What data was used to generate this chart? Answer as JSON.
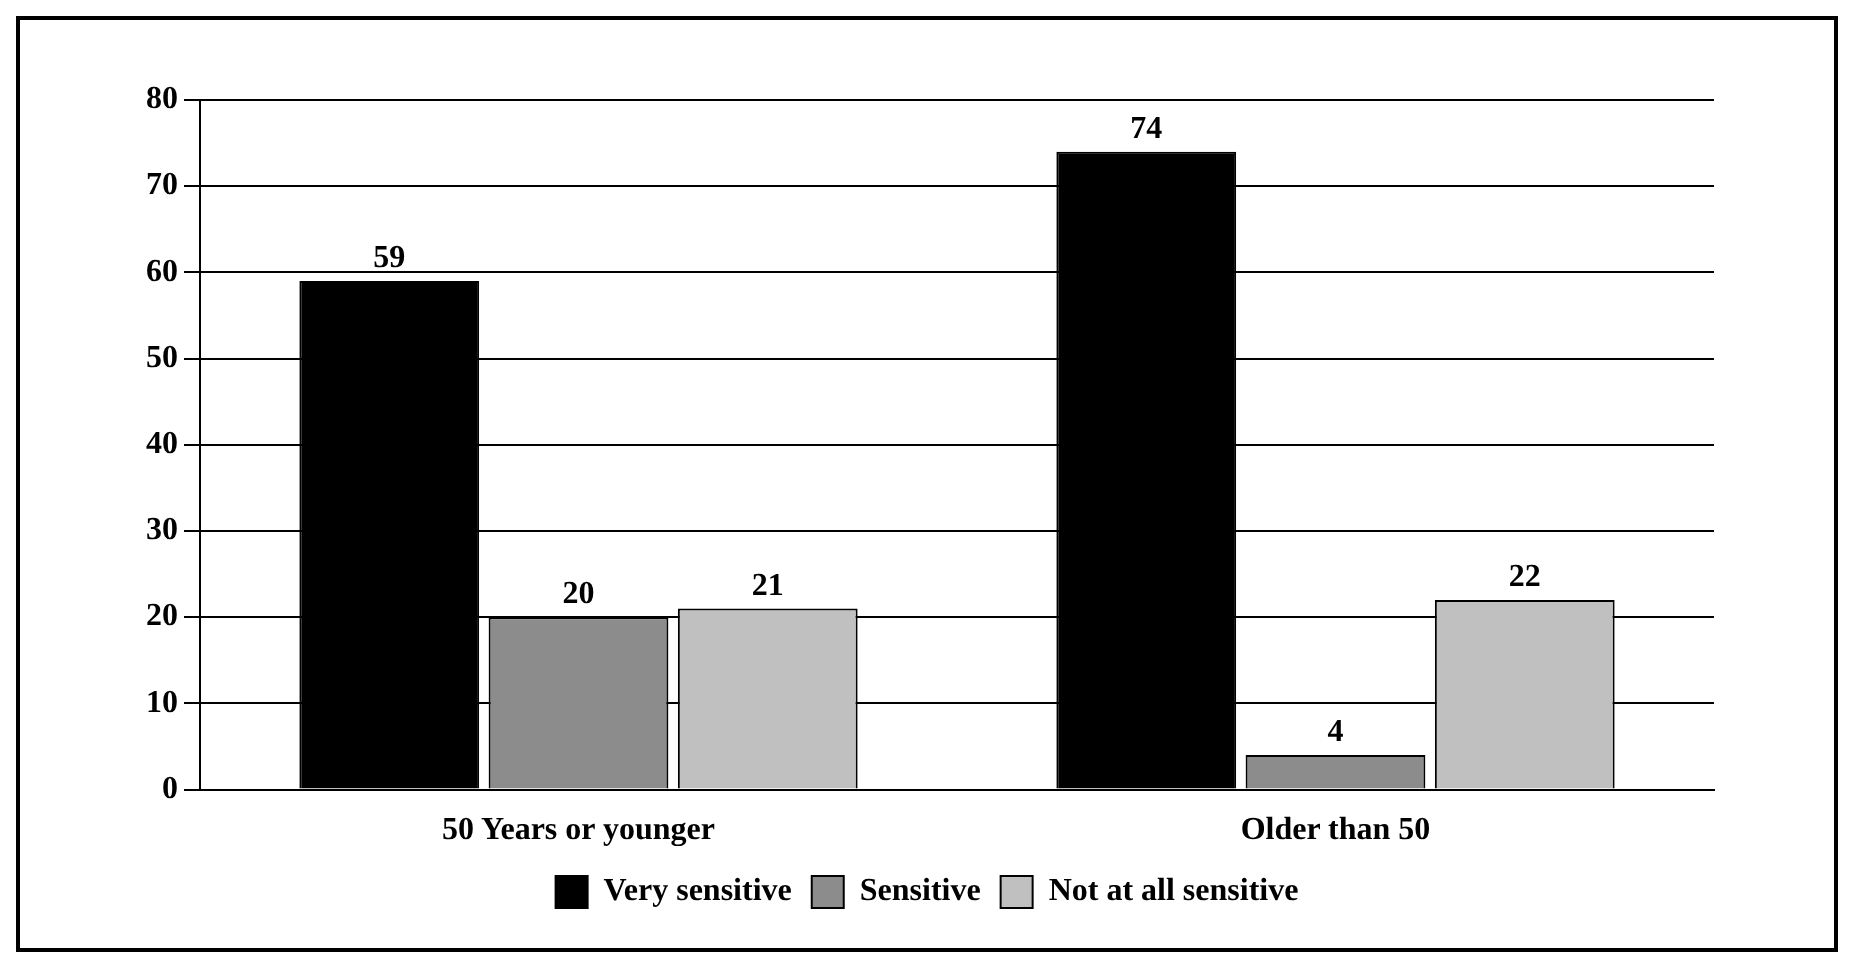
{
  "chart_data": {
    "type": "bar",
    "categories": [
      "50 Years or younger",
      "Older than 50"
    ],
    "series": [
      {
        "name": "Very sensitive",
        "color": "#000000",
        "values": [
          59,
          74
        ]
      },
      {
        "name": "Sensitive",
        "color": "#8c8c8c",
        "values": [
          20,
          4
        ]
      },
      {
        "name": "Not at all sensitive",
        "color": "#c0c0c0",
        "values": [
          21,
          22
        ]
      }
    ],
    "ylim": [
      0,
      80
    ],
    "yticks": [
      0,
      10,
      20,
      30,
      40,
      50,
      60,
      70,
      80
    ],
    "grid": "y",
    "legend": "bottom",
    "data_labels": true
  }
}
